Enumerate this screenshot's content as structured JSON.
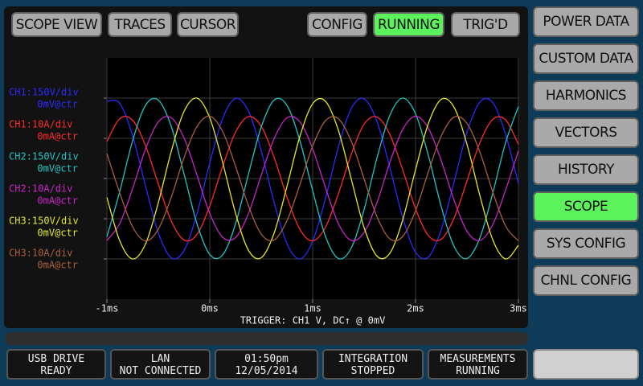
{
  "top_buttons": [
    "SCOPE VIEW",
    "TRACES",
    "CURSOR"
  ],
  "status_buttons": [
    "CONFIG",
    "RUNNING",
    "TRIG'D"
  ],
  "side_menu": [
    "POWER DATA",
    "CUSTOM DATA",
    "HARMONICS",
    "VECTORS",
    "HISTORY",
    "SCOPE",
    "SYS CONFIG",
    "CHNL CONFIG"
  ],
  "status_bar": [
    [
      "USB DRIVE",
      "READY"
    ],
    [
      "LAN",
      "NOT CONNECTED"
    ],
    [
      "01:50pm",
      "12/05/2014"
    ],
    [
      "INTEGRATION",
      "STOPPED"
    ],
    [
      "MEASUREMENTS",
      "RUNNING"
    ]
  ],
  "chart_data": {
    "type": "line",
    "subtitle": "TRIGGER: CH1 V, DC↑ @ 0mV",
    "x": [
      -1,
      -0.875,
      -0.75,
      -0.625,
      -0.5,
      -0.375,
      -0.25,
      -0.125,
      0,
      0.125,
      0.25,
      0.375,
      0.5,
      0.625,
      0.75,
      0.875,
      1,
      1.125,
      1.25,
      1.375,
      1.5,
      1.625,
      1.75,
      1.875,
      2,
      2.125,
      2.25,
      2.375,
      2.5,
      2.625,
      2.75,
      2.875,
      3
    ],
    "xlim": [
      -1,
      3
    ],
    "xticks": [
      {
        "value": -1,
        "label": "-1ms"
      },
      {
        "value": 0,
        "label": "0ms"
      },
      {
        "value": 1,
        "label": "1ms"
      },
      {
        "value": 2,
        "label": "2ms"
      },
      {
        "value": 3,
        "label": "3ms"
      }
    ],
    "ylim": [
      -3,
      3
    ],
    "yticks": [
      -2,
      -1,
      0,
      1,
      2
    ],
    "grid": true,
    "series": [
      {
        "name": "CH1:150V/div",
        "center": "0mV@ctr",
        "color": "#2a2aff",
        "values": [
          1.92,
          1.87,
          1.06,
          -0.18,
          -1.35,
          -1.97,
          -1.79,
          -0.88,
          0.39,
          1.49,
          1.99,
          1.68,
          0.69,
          -0.59,
          -1.62,
          -2.0,
          -1.56,
          -0.49,
          0.78,
          1.74,
          1.98,
          1.42,
          0.28,
          -0.97,
          -1.83,
          -1.95,
          -1.27,
          -0.08,
          1.15,
          1.9,
          1.89,
          1.1,
          -0.13
        ]
      },
      {
        "name": "CH1:10A/div",
        "center": "0mA@ctr",
        "color": "#ff2a2a",
        "values": [
          0.92,
          1.49,
          1.45,
          0.82,
          -0.14,
          -1.05,
          -1.53,
          -1.39,
          -0.68,
          0.3,
          1.15,
          1.54,
          1.3,
          0.53,
          -0.46,
          -1.26,
          -1.55,
          -1.21,
          -0.38,
          0.6,
          1.35,
          1.53,
          1.1,
          0.22,
          -0.75,
          -1.42,
          -1.51,
          -0.98,
          -0.06,
          0.89,
          1.47,
          1.46,
          0.85
        ]
      },
      {
        "name": "CH2:150V/div",
        "center": "0mV@ctr",
        "color": "#22c4c4",
        "values": [
          -1.45,
          -0.32,
          0.94,
          1.82,
          1.95,
          1.3,
          0.11,
          -1.12,
          -1.89,
          -1.9,
          -1.13,
          0.1,
          1.28,
          1.95,
          1.82,
          0.95,
          -0.3,
          -1.44,
          -1.99,
          -1.73,
          -0.77,
          0.51,
          1.57,
          2.0,
          1.61,
          0.57,
          -0.7,
          -1.69,
          -1.99,
          -1.48,
          -0.37,
          0.89,
          1.79
        ]
      },
      {
        "name": "CH2:10A/div",
        "center": "0mA@ctr",
        "color": "#c824c8",
        "values": [
          -1.54,
          -1.12,
          -0.25,
          0.73,
          1.41,
          1.51,
          1.01,
          0.09,
          -0.87,
          -1.46,
          -1.47,
          -0.88,
          0.08,
          0.99,
          1.51,
          1.41,
          0.74,
          -0.23,
          -1.12,
          -1.54,
          -1.34,
          -0.6,
          0.4,
          1.22,
          1.55,
          1.25,
          0.44,
          -0.54,
          -1.31,
          -1.54,
          -1.15,
          -0.29,
          0.69
        ]
      },
      {
        "name": "CH3:150V/div",
        "center": "0mV@ctr",
        "color": "#e6e62a",
        "values": [
          -0.47,
          -1.55,
          -2.0,
          -1.63,
          -0.6,
          0.67,
          1.67,
          2.0,
          1.51,
          0.4,
          -0.86,
          -1.78,
          -1.97,
          -1.36,
          -0.2,
          1.04,
          1.86,
          1.92,
          1.2,
          -0.01,
          -1.22,
          -1.93,
          -1.86,
          -1.03,
          0.22,
          1.37,
          1.97,
          1.77,
          0.85,
          -0.42,
          -1.52,
          -2.0,
          -1.66
        ]
      },
      {
        "name": "CH3:10A/div",
        "center": "0mA@ctr",
        "color": "#a8603c",
        "values": [
          0.62,
          -0.36,
          -1.2,
          -1.55,
          -1.26,
          -0.47,
          0.52,
          1.29,
          1.55,
          1.17,
          0.31,
          -0.67,
          -1.38,
          -1.53,
          -1.05,
          -0.16,
          0.81,
          1.44,
          1.49,
          0.93,
          -0.01,
          -0.95,
          -1.5,
          -1.44,
          -0.8,
          0.17,
          1.06,
          1.53,
          1.37,
          0.66,
          -0.33,
          -1.18,
          -1.55
        ]
      }
    ]
  }
}
